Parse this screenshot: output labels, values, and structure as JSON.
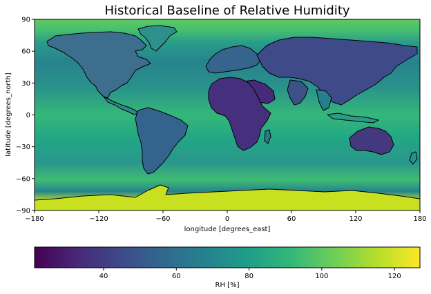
{
  "title": "Historical Baseline of Relative Humidity",
  "map": {
    "xlabel": "longitude [degrees_east]",
    "ylabel": "latitude [degrees_north]",
    "xlim": [
      -180,
      180
    ],
    "ylim": [
      -90,
      90
    ],
    "xticks": [
      -180,
      -120,
      -60,
      0,
      60,
      120,
      180
    ],
    "yticks": [
      -90,
      -60,
      -30,
      0,
      30,
      60,
      90
    ],
    "colormap": "viridis",
    "coastlines": true
  },
  "colorbar": {
    "label": "RH [%]",
    "range": [
      21,
      127
    ],
    "ticks": [
      40,
      60,
      80,
      100,
      120
    ],
    "colors": [
      "#440154",
      "#482878",
      "#3e4989",
      "#31688e",
      "#26828e",
      "#1f9e89",
      "#35b779",
      "#6ece58",
      "#b5de2b",
      "#fde725"
    ]
  }
}
